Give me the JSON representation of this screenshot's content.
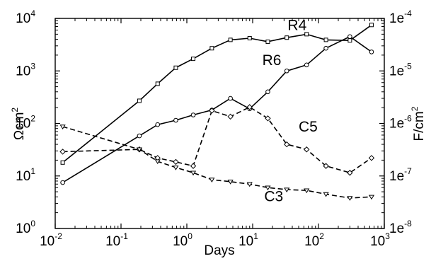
{
  "chart_data": {
    "type": "line",
    "xlabel": "Days",
    "ylabel_left": "Ωcm",
    "ylabel_left_exp": "2",
    "ylabel_right": "F/cm",
    "ylabel_right_exp": "2",
    "x_scale": "log",
    "y_scale": "log",
    "xlim": [
      0.01,
      1000
    ],
    "ylim_left": [
      1,
      10000
    ],
    "ylim_right": [
      1e-08,
      0.0001
    ],
    "grid": false,
    "legend": "none",
    "x_ticks": [
      {
        "value": 0.01,
        "base": "10",
        "exp": "-2"
      },
      {
        "value": 0.1,
        "base": "10",
        "exp": "-1"
      },
      {
        "value": 1,
        "base": "10",
        "exp": "0"
      },
      {
        "value": 10,
        "base": "10",
        "exp": "1"
      },
      {
        "value": 100,
        "base": "10",
        "exp": "2"
      },
      {
        "value": 1000,
        "base": "10",
        "exp": "3"
      }
    ],
    "y_ticks_left": [
      {
        "value": 1,
        "base": "10",
        "exp": "0"
      },
      {
        "value": 10,
        "base": "10",
        "exp": "1"
      },
      {
        "value": 100,
        "base": "10",
        "exp": "2"
      },
      {
        "value": 1000,
        "base": "10",
        "exp": "3"
      },
      {
        "value": 10000,
        "base": "10",
        "exp": "4"
      }
    ],
    "y_ticks_right": [
      {
        "value": 1e-08,
        "base": "1e",
        "exp": "-8"
      },
      {
        "value": 1e-07,
        "base": "1e",
        "exp": "-7"
      },
      {
        "value": 1e-06,
        "base": "1e",
        "exp": "-6"
      },
      {
        "value": 1e-05,
        "base": "1e",
        "exp": "-5"
      },
      {
        "value": 0.0001,
        "base": "1e",
        "exp": "-4"
      }
    ],
    "series": [
      {
        "name": "R4",
        "axis": "left",
        "style": "solid",
        "marker": "square",
        "x": [
          0.013,
          0.19,
          0.36,
          0.68,
          1.25,
          2.4,
          4.6,
          9.0,
          17,
          33,
          66,
          130,
          300,
          640
        ],
        "y": [
          18,
          270,
          570,
          1150,
          1700,
          2700,
          3900,
          4200,
          3600,
          4300,
          5000,
          3900,
          3800,
          7500
        ],
        "label_x": 34,
        "label_y": 6000
      },
      {
        "name": "R6",
        "axis": "left",
        "style": "solid",
        "marker": "circle",
        "x": [
          0.013,
          0.19,
          0.36,
          0.68,
          1.25,
          2.4,
          4.6,
          9.0,
          17,
          33,
          66,
          130,
          300,
          640
        ],
        "y": [
          7.5,
          58,
          95,
          115,
          145,
          180,
          300,
          190,
          400,
          1000,
          1300,
          2700,
          4500,
          2300
        ],
        "label_x": 14,
        "label_y": 1300
      },
      {
        "name": "C5",
        "axis": "right",
        "style": "dashed",
        "marker": "diamond",
        "x": [
          0.013,
          0.19,
          0.36,
          0.68,
          1.25,
          2.4,
          4.6,
          9.0,
          17,
          33,
          66,
          130,
          300,
          640
        ],
        "y": [
          2.9e-07,
          3.2e-07,
          2.2e-07,
          1.85e-07,
          1.55e-07,
          1.75e-06,
          1.35e-06,
          2.05e-06,
          1.25e-06,
          4e-07,
          3.2e-07,
          1.55e-07,
          1.15e-07,
          2.2e-07
        ],
        "label_x": 50,
        "label_y": 7e-07
      },
      {
        "name": "C3",
        "axis": "right",
        "style": "dashed",
        "marker": "triangle",
        "x": [
          0.013,
          0.19,
          0.36,
          0.68,
          1.25,
          2.4,
          4.6,
          9.0,
          17,
          33,
          66,
          130,
          300,
          640
        ],
        "y": [
          8.7e-07,
          3.2e-07,
          1.9e-07,
          1.45e-07,
          1.15e-07,
          8.5e-08,
          7.8e-08,
          7e-08,
          6e-08,
          5.5e-08,
          5.3e-08,
          4.5e-08,
          3.8e-08,
          4e-08
        ],
        "label_x": 15,
        "label_y": 3.3e-08
      }
    ]
  }
}
